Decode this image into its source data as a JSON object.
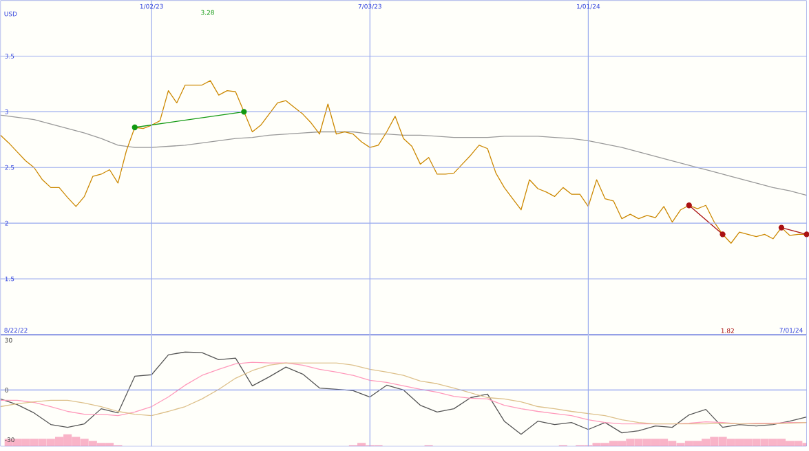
{
  "chart_data": [
    {
      "type": "line",
      "ylabel": "USD",
      "xlim": [
        "2022-08-29",
        "2024-07-01"
      ],
      "ylim": [
        1,
        4
      ],
      "yticks": [
        1.5,
        2,
        2.5,
        3,
        3.5
      ],
      "grid": true,
      "xticks": [
        {
          "value": "2023-01-02",
          "label": "1/02/23"
        },
        {
          "value": "2023-07-03",
          "label": "7/03/23"
        },
        {
          "value": "2024-01-01",
          "label": "1/01/24"
        }
      ],
      "annotations": [
        "8/22/22",
        "7/01/24",
        "3.28",
        "1.82"
      ],
      "x": [
        "2022-08-29",
        "2022-09-05",
        "2022-09-12",
        "2022-09-19",
        "2022-09-26",
        "2022-10-03",
        "2022-10-10",
        "2022-10-17",
        "2022-10-24",
        "2022-10-31",
        "2022-11-07",
        "2022-11-14",
        "2022-11-21",
        "2022-11-28",
        "2022-12-05",
        "2022-12-12",
        "2022-12-19",
        "2022-12-26",
        "2023-01-02",
        "2023-01-09",
        "2023-01-16",
        "2023-01-23",
        "2023-01-30",
        "2023-02-06",
        "2023-02-13",
        "2023-02-20",
        "2023-02-27",
        "2023-03-06",
        "2023-03-13",
        "2023-03-20",
        "2023-03-27",
        "2023-04-03",
        "2023-04-10",
        "2023-04-17",
        "2023-04-24",
        "2023-05-01",
        "2023-05-08",
        "2023-05-15",
        "2023-05-22",
        "2023-05-29",
        "2023-06-05",
        "2023-06-12",
        "2023-06-19",
        "2023-06-26",
        "2023-07-03",
        "2023-07-10",
        "2023-07-17",
        "2023-07-24",
        "2023-07-31",
        "2023-08-07",
        "2023-08-14",
        "2023-08-21",
        "2023-08-28",
        "2023-09-04",
        "2023-09-11",
        "2023-09-18",
        "2023-09-25",
        "2023-10-02",
        "2023-10-09",
        "2023-10-16",
        "2023-10-23",
        "2023-10-30",
        "2023-11-06",
        "2023-11-13",
        "2023-11-20",
        "2023-11-27",
        "2023-12-04",
        "2023-12-11",
        "2023-12-18",
        "2023-12-25",
        "2024-01-01",
        "2024-01-08",
        "2024-01-15",
        "2024-01-22",
        "2024-01-29",
        "2024-02-05",
        "2024-02-12",
        "2024-02-19",
        "2024-02-26",
        "2024-03-04",
        "2024-03-11",
        "2024-03-18",
        "2024-03-25",
        "2024-04-01",
        "2024-04-08",
        "2024-04-15",
        "2024-04-22",
        "2024-04-29",
        "2024-05-06",
        "2024-05-13",
        "2024-05-20",
        "2024-05-27",
        "2024-06-03",
        "2024-06-10",
        "2024-06-17",
        "2024-06-24",
        "2024-07-01"
      ],
      "series": [
        {
          "color": "#999999",
          "x": [
            "2022-08-29",
            "2022-09-12",
            "2022-09-26",
            "2022-10-10",
            "2022-10-24",
            "2022-11-07",
            "2022-11-21",
            "2022-12-05",
            "2022-12-19",
            "2023-01-02",
            "2023-01-16",
            "2023-01-30",
            "2023-02-13",
            "2023-02-27",
            "2023-03-13",
            "2023-03-27",
            "2023-04-10",
            "2023-04-24",
            "2023-05-08",
            "2023-05-22",
            "2023-06-05",
            "2023-06-19",
            "2023-07-03",
            "2023-07-17",
            "2023-07-31",
            "2023-08-14",
            "2023-08-28",
            "2023-09-11",
            "2023-09-25",
            "2023-10-09",
            "2023-10-23",
            "2023-11-06",
            "2023-11-20",
            "2023-12-04",
            "2023-12-18",
            "2024-01-01",
            "2024-01-15",
            "2024-01-29",
            "2024-02-12",
            "2024-02-26",
            "2024-03-11",
            "2024-03-25",
            "2024-04-08",
            "2024-04-22",
            "2024-05-06",
            "2024-05-20",
            "2024-06-03",
            "2024-06-17",
            "2024-07-01"
          ],
          "values": [
            2.97,
            2.95,
            2.93,
            2.89,
            2.85,
            2.81,
            2.76,
            2.7,
            2.68,
            2.68,
            2.69,
            2.7,
            2.72,
            2.74,
            2.76,
            2.77,
            2.79,
            2.8,
            2.81,
            2.82,
            2.82,
            2.82,
            2.8,
            2.8,
            2.79,
            2.79,
            2.78,
            2.77,
            2.77,
            2.77,
            2.78,
            2.78,
            2.78,
            2.77,
            2.76,
            2.74,
            2.71,
            2.68,
            2.64,
            2.6,
            2.56,
            2.52,
            2.48,
            2.44,
            2.4,
            2.36,
            2.32,
            2.29,
            2.25
          ]
        },
        {
          "color": "#cc8800",
          "values": [
            2.79,
            2.72,
            2.64,
            2.56,
            2.5,
            2.39,
            2.32,
            2.32,
            2.23,
            2.15,
            2.24,
            2.42,
            2.44,
            2.48,
            2.36,
            2.65,
            2.86,
            2.85,
            2.88,
            2.92,
            3.19,
            3.08,
            3.24,
            3.24,
            3.24,
            3.28,
            3.15,
            3.19,
            3.18,
            3.0,
            2.82,
            2.88,
            2.98,
            3.08,
            3.1,
            3.04,
            2.98,
            2.9,
            2.8,
            3.07,
            2.8,
            2.82,
            2.8,
            2.73,
            2.68,
            2.7,
            2.82,
            2.96,
            2.76,
            2.69,
            2.53,
            2.59,
            2.44,
            2.44,
            2.45,
            2.53,
            2.61,
            2.7,
            2.67,
            2.45,
            2.32,
            2.22,
            2.12,
            2.39,
            2.31,
            2.28,
            2.24,
            2.32,
            2.26,
            2.26,
            2.15,
            2.39,
            2.22,
            2.2,
            2.04,
            2.08,
            2.04,
            2.07,
            2.05,
            2.15,
            2.01,
            2.12,
            2.16,
            2.13,
            2.16,
            2.01,
            1.9,
            1.82,
            1.92,
            1.9,
            1.88,
            1.9,
            1.86,
            1.96,
            1.89,
            1.9,
            1.9
          ]
        },
        {
          "color": "#119911",
          "marker": "circle",
          "x": [
            "2022-12-19",
            "2023-03-20"
          ],
          "values": [
            2.86,
            3.0
          ]
        },
        {
          "color": "#aa1111",
          "marker": "circle",
          "x": [
            "2024-03-25",
            "2024-04-22"
          ],
          "values": [
            2.16,
            1.9
          ]
        },
        {
          "color": "#aa1111",
          "marker": "circle",
          "x": [
            "2024-06-10",
            "2024-07-01"
          ],
          "values": [
            1.96,
            1.9
          ]
        }
      ]
    },
    {
      "type": "line",
      "xlim": [
        "2022-08-29",
        "2024-07-01"
      ],
      "ylim": [
        -34,
        33
      ],
      "yticks": [
        -30,
        0,
        30
      ],
      "grid": "x",
      "tick_labels": "y",
      "xticks": [
        {
          "value": "2023-01-02",
          "label": null
        },
        {
          "value": "2023-07-03",
          "label": null
        },
        {
          "value": "2024-01-01",
          "label": null
        }
      ],
      "ref_lines": [
        {
          "axis": "y",
          "value": 0,
          "color": "#8899ee"
        }
      ],
      "series": [
        {
          "type": "bar",
          "color": "#f9b4c8",
          "x": [
            "2022-09-05",
            "2022-09-12",
            "2022-09-19",
            "2022-09-26",
            "2022-10-03",
            "2022-10-10",
            "2022-10-17",
            "2022-10-24",
            "2022-10-31",
            "2022-11-07",
            "2022-11-14",
            "2022-11-21",
            "2022-11-28",
            "2022-12-05",
            "2023-06-19",
            "2023-06-26",
            "2023-07-03",
            "2023-07-10",
            "2023-08-21",
            "2023-12-11",
            "2023-12-25",
            "2024-01-01",
            "2024-01-08",
            "2024-01-15",
            "2024-01-22",
            "2024-01-29",
            "2024-02-05",
            "2024-02-12",
            "2024-02-19",
            "2024-02-26",
            "2024-03-04",
            "2024-03-11",
            "2024-03-18",
            "2024-03-25",
            "2024-04-01",
            "2024-04-08",
            "2024-04-15",
            "2024-04-22",
            "2024-04-29",
            "2024-05-06",
            "2024-05-13",
            "2024-05-20",
            "2024-05-27",
            "2024-06-03",
            "2024-06-10",
            "2024-06-17",
            "2024-06-24",
            "2024-07-01"
          ],
          "values": [
            4.6,
            4.6,
            4.6,
            4.6,
            4.6,
            4.6,
            5.7,
            7.3,
            5.7,
            4.6,
            3.4,
            2.1,
            2.1,
            0.8,
            0.8,
            2.1,
            0.8,
            0.8,
            0.8,
            0.8,
            0.8,
            0.8,
            2.1,
            2.1,
            3.4,
            3.4,
            4.6,
            4.6,
            4.6,
            4.6,
            4.6,
            3.4,
            2.1,
            3.4,
            3.4,
            4.6,
            5.7,
            5.7,
            4.6,
            4.6,
            4.6,
            4.6,
            4.6,
            4.6,
            4.6,
            3.4,
            3.4,
            2.1
          ],
          "base": [
            -34,
            -34,
            -34,
            -34,
            -34,
            -34,
            -34,
            -34,
            -34,
            -34,
            -34,
            -34,
            -34,
            -34,
            -34,
            -34,
            -34,
            -34,
            -34,
            -34,
            -34,
            -34,
            -34,
            -34,
            -34,
            -34,
            -34,
            -34,
            -34,
            -34,
            -34,
            -34,
            -34,
            -34,
            -34,
            -34,
            -34,
            -34,
            -34,
            -34,
            -34,
            -34,
            -34,
            -34,
            -34,
            -34,
            -34,
            -34
          ]
        },
        {
          "color": "#555555",
          "values": [
            -5.4,
            -8.8,
            -13.8,
            -20.8,
            -22.5,
            -20.4,
            -11.3,
            -13.8,
            8.3,
            9.2,
            21.2,
            22.9,
            22.5,
            18.3,
            19.2,
            2.5,
            7.9,
            13.8,
            9.6,
            1.2,
            0.4,
            -0.4,
            -4.2,
            2.9,
            0,
            -9.2,
            -13.3,
            -11.3,
            -4.6,
            -2.5,
            -18.8,
            -26.7,
            -18.8,
            -20.8,
            -19.6,
            -23.8,
            -19.6,
            -25.8,
            -24.6,
            -21.7,
            -22.5,
            -15,
            -11.7,
            -22.5,
            -20.8,
            -21.7,
            -20.8,
            -18.8,
            -16.3
          ]
        },
        {
          "color": "#ff99bb",
          "values": [
            -6.2,
            -6.2,
            -7.5,
            -10,
            -12.9,
            -14.6,
            -14.6,
            -15.4,
            -13.3,
            -10,
            -4.2,
            2.9,
            8.8,
            12.5,
            15.8,
            16.7,
            16.3,
            16.3,
            15,
            12.5,
            10.8,
            8.8,
            5.8,
            4.6,
            2.5,
            0.4,
            -1.3,
            -3.8,
            -5,
            -5.4,
            -9.2,
            -11.3,
            -12.9,
            -14.2,
            -15.4,
            -17.9,
            -19.6,
            -20.4,
            -20.4,
            -20.4,
            -20.4,
            -20,
            -19.2,
            -19.6,
            -20.4,
            -20,
            -20,
            -19.6,
            -19.6
          ]
        },
        {
          "color": "#ddc08a",
          "values": [
            -10,
            -8.3,
            -7.1,
            -6.2,
            -6.2,
            -7.9,
            -10,
            -12.9,
            -14.6,
            -15.4,
            -12.9,
            -10,
            -5.4,
            0.4,
            7.1,
            11.7,
            15,
            16.3,
            16.3,
            16.3,
            16.3,
            15,
            12.5,
            10.8,
            8.8,
            5.4,
            3.8,
            1.2,
            -1.7,
            -4.6,
            -5.4,
            -7.1,
            -10,
            -11.3,
            -12.9,
            -14.2,
            -15.4,
            -17.9,
            -19.6,
            -20.4,
            -20.4,
            -20.4,
            -20.4,
            -20,
            -20.4,
            -20.4,
            -20.4,
            -20,
            -19.6
          ]
        }
      ],
      "x": [
        "2022-08-29",
        "2022-09-12",
        "2022-09-26",
        "2022-10-10",
        "2022-10-24",
        "2022-11-07",
        "2022-11-21",
        "2022-12-05",
        "2022-12-19",
        "2023-01-02",
        "2023-01-16",
        "2023-01-30",
        "2023-02-13",
        "2023-02-27",
        "2023-03-13",
        "2023-03-27",
        "2023-04-10",
        "2023-04-24",
        "2023-05-08",
        "2023-05-22",
        "2023-06-05",
        "2023-06-19",
        "2023-07-03",
        "2023-07-17",
        "2023-07-31",
        "2023-08-14",
        "2023-08-28",
        "2023-09-11",
        "2023-09-25",
        "2023-10-09",
        "2023-10-23",
        "2023-11-06",
        "2023-11-20",
        "2023-12-04",
        "2023-12-18",
        "2024-01-01",
        "2024-01-15",
        "2024-01-29",
        "2024-02-12",
        "2024-02-26",
        "2024-03-11",
        "2024-03-25",
        "2024-04-08",
        "2024-04-22",
        "2024-05-06",
        "2024-05-20",
        "2024-06-03",
        "2024-06-17",
        "2024-07-01"
      ]
    }
  ]
}
